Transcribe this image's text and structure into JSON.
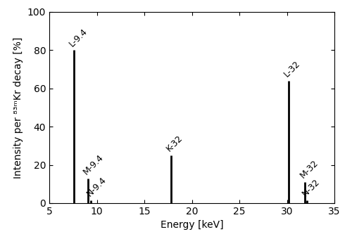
{
  "chart_data": {
    "type": "stem",
    "x_label": "Energy [keV]",
    "y_label": "Intensity per ⁸³ᵐKr decay [%]",
    "x": [
      7.6,
      9.1,
      9.4,
      17.8,
      30.2,
      31.9,
      32.1
    ],
    "values": [
      80,
      13,
      1.5,
      25,
      64,
      11,
      1.5
    ],
    "labels": [
      "L-9.4",
      "M-9.4",
      "N-9.4",
      "K-32",
      "L-32",
      "M-32",
      "N-32"
    ],
    "color": "#000000",
    "xlim": [
      5,
      35
    ],
    "xticks": [
      5,
      10,
      15,
      20,
      25,
      30,
      35
    ],
    "ylim": [
      0,
      100
    ],
    "yticks": [
      0,
      20,
      40,
      60,
      80,
      100
    ],
    "grid": false
  }
}
